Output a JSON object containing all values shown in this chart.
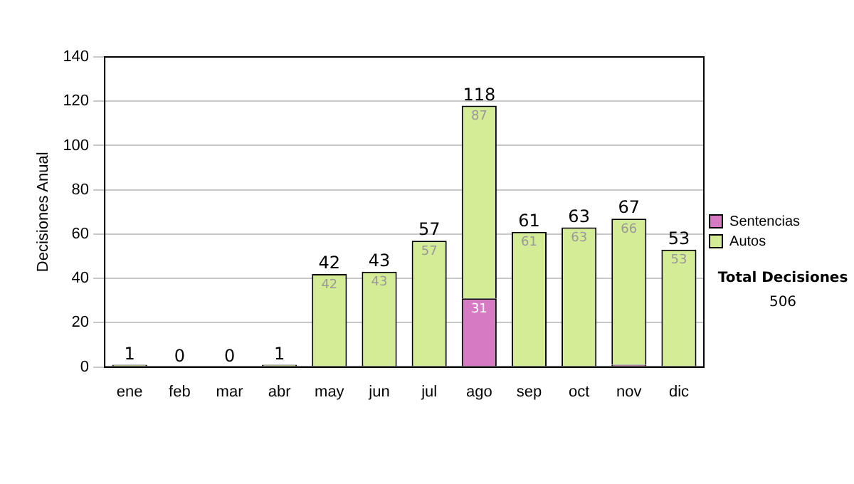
{
  "chart_data": {
    "type": "bar",
    "stacked": true,
    "ylabel": "Decisiones Anual",
    "categories": [
      "ene",
      "feb",
      "mar",
      "abr",
      "may",
      "jun",
      "jul",
      "ago",
      "sep",
      "oct",
      "nov",
      "dic"
    ],
    "series": [
      {
        "name": "Sentencias",
        "color": "#d67ac4",
        "values": [
          0,
          0,
          0,
          0,
          0,
          0,
          0,
          31,
          0,
          0,
          1,
          0
        ],
        "value_labels": [
          null,
          null,
          null,
          null,
          null,
          null,
          null,
          "31",
          null,
          null,
          null,
          null
        ]
      },
      {
        "name": "Autos",
        "color": "#d5ec96",
        "values": [
          1,
          0,
          0,
          1,
          42,
          43,
          57,
          87,
          61,
          63,
          66,
          53
        ],
        "value_labels": [
          null,
          null,
          null,
          null,
          "42",
          "43",
          "57",
          "87",
          "61",
          "63",
          "66",
          "53"
        ]
      }
    ],
    "totals": [
      "1",
      "0",
      "0",
      "1",
      "42",
      "43",
      "57",
      "118",
      "61",
      "63",
      "67",
      "53"
    ],
    "ylim": [
      0,
      140
    ],
    "yticks": [
      0,
      20,
      40,
      60,
      80,
      100,
      120,
      140
    ],
    "grid": "y",
    "legend": "right",
    "annotations": [
      "Total Decisiones",
      "506"
    ]
  }
}
